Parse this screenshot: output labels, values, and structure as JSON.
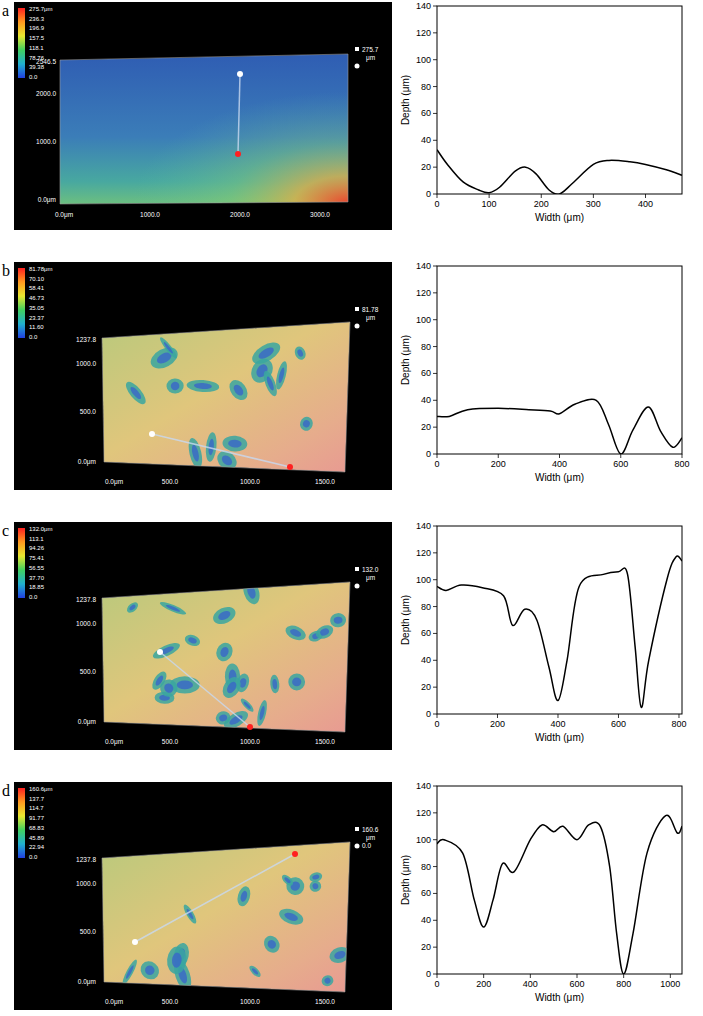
{
  "panels": [
    {
      "letter": "a",
      "surface": {
        "colorbar_labels": [
          "275.7μm",
          "236.3",
          "196.9",
          "157.5",
          "118.1",
          "78.76",
          "39.38",
          "0.0"
        ],
        "y_labels": [
          "2546.5",
          "2000.0",
          "1000.0",
          "0.0μm"
        ],
        "x_labels": [
          "0.0μm",
          "1000.0",
          "2000.0",
          "3000.0"
        ],
        "max_label": "275.7",
        "max_unit": "μm"
      }
    },
    {
      "letter": "b",
      "surface": {
        "colorbar_labels": [
          "81.78μm",
          "70.10",
          "58.41",
          "46.73",
          "35.05",
          "23.37",
          "11.60",
          "0.0"
        ],
        "y_labels": [
          "1237.8",
          "1000.0",
          "500.0",
          "0.0μm"
        ],
        "x_labels": [
          "0.0μm",
          "500.0",
          "1000.0",
          "1500.0"
        ],
        "max_label": "81.78",
        "max_unit": "μm"
      }
    },
    {
      "letter": "c",
      "surface": {
        "colorbar_labels": [
          "132.0μm",
          "113.1",
          "94.26",
          "75.41",
          "56.55",
          "37.70",
          "18.85",
          "0.0"
        ],
        "y_labels": [
          "1237.8",
          "1000.0",
          "500.0",
          "0.0μm"
        ],
        "x_labels": [
          "0.0μm",
          "500.0",
          "1000.0",
          "1500.0"
        ],
        "max_label": "132.0",
        "max_unit": "μm"
      }
    },
    {
      "letter": "d",
      "surface": {
        "colorbar_labels": [
          "160.6μm",
          "137.7",
          "114.7",
          "91.77",
          "68.83",
          "45.89",
          "22.94",
          "0.0"
        ],
        "y_labels": [
          "1237.8",
          "1000.0",
          "500.0",
          "0.0μm"
        ],
        "x_labels": [
          "0.0μm",
          "500.0",
          "1000.0",
          "1500.0"
        ],
        "max_label": "160.6",
        "max_unit": "μm",
        "min_label": "0.0"
      }
    }
  ],
  "chart_data": [
    {
      "type": "line",
      "x_label": "Width (μm)",
      "y_label": "Depth (μm)",
      "color": "#000000",
      "x": [
        0,
        20,
        50,
        80,
        100,
        120,
        150,
        170,
        190,
        215,
        235,
        260,
        300,
        330,
        370,
        400,
        440,
        470
      ],
      "values": [
        33,
        22,
        9,
        3,
        1,
        5,
        17,
        20,
        15,
        3,
        0,
        8,
        22,
        25,
        24,
        22,
        18,
        14
      ],
      "xlim": [
        0,
        470
      ],
      "ylim": [
        0,
        140
      ],
      "xticks": [
        0,
        100,
        200,
        300,
        400
      ],
      "yticks": [
        0,
        20,
        40,
        60,
        80,
        100,
        120,
        140
      ]
    },
    {
      "type": "line",
      "x_label": "Width (μm)",
      "y_label": "Depth (μm)",
      "color": "#000000",
      "x": [
        0,
        40,
        100,
        200,
        300,
        370,
        400,
        450,
        520,
        560,
        600,
        640,
        690,
        730,
        770,
        800
      ],
      "values": [
        28,
        28,
        33,
        34,
        33,
        32,
        30,
        37,
        40,
        22,
        0,
        18,
        35,
        17,
        5,
        12
      ],
      "xlim": [
        0,
        800
      ],
      "ylim": [
        0,
        140
      ],
      "xticks": [
        0,
        200,
        400,
        600,
        800
      ],
      "yticks": [
        0,
        20,
        40,
        60,
        80,
        100,
        120,
        140
      ]
    },
    {
      "type": "line",
      "x_label": "Width (μm)",
      "y_label": "Depth (μm)",
      "color": "#000000",
      "x": [
        0,
        30,
        80,
        150,
        220,
        250,
        290,
        330,
        370,
        400,
        430,
        470,
        550,
        600,
        630,
        655,
        675,
        700,
        760,
        790,
        810
      ],
      "values": [
        95,
        92,
        96,
        94,
        88,
        66,
        78,
        70,
        35,
        10,
        40,
        95,
        104,
        106,
        104,
        50,
        5,
        40,
        100,
        117,
        114
      ],
      "xlim": [
        0,
        810
      ],
      "ylim": [
        0,
        140
      ],
      "xticks": [
        0,
        200,
        400,
        600,
        800
      ],
      "yticks": [
        0,
        20,
        40,
        60,
        80,
        100,
        120,
        140
      ]
    },
    {
      "type": "line",
      "x_label": "Width (μm)",
      "y_label": "Depth (μm)",
      "color": "#000000",
      "x": [
        0,
        30,
        110,
        160,
        200,
        240,
        280,
        330,
        400,
        450,
        500,
        540,
        600,
        650,
        700,
        740,
        770,
        800,
        840,
        900,
        980,
        1030,
        1050
      ],
      "values": [
        97,
        100,
        90,
        55,
        35,
        55,
        82,
        76,
        100,
        111,
        106,
        110,
        100,
        111,
        110,
        80,
        30,
        0,
        30,
        90,
        118,
        105,
        110
      ],
      "xlim": [
        0,
        1050
      ],
      "ylim": [
        0,
        140
      ],
      "xticks": [
        0,
        200,
        400,
        600,
        800,
        1000
      ],
      "yticks": [
        0,
        20,
        40,
        60,
        80,
        100,
        120,
        140
      ]
    }
  ]
}
